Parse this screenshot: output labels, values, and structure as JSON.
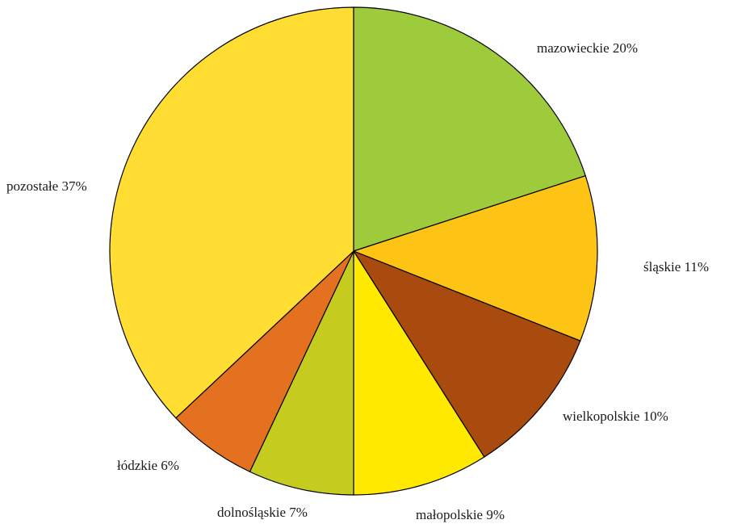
{
  "chart_data": {
    "type": "pie",
    "title": "",
    "start": "12 o'clock",
    "direction": "clockwise",
    "slices": [
      {
        "label": "mazowieckie 20%",
        "category": "mazowieckie",
        "value": 20,
        "color": "#9dcb3c"
      },
      {
        "label": "śląskie 11%",
        "category": "śląskie",
        "value": 11,
        "color": "#fdc315"
      },
      {
        "label": "wielkopolskie 10%",
        "category": "wielkopolskie",
        "value": 10,
        "color": "#a94a0e"
      },
      {
        "label": "małopolskie 9%",
        "category": "małopolskie",
        "value": 9,
        "color": "#ffe900"
      },
      {
        "label": "dolnośląskie 7%",
        "category": "dolnośląskie",
        "value": 7,
        "color": "#c5cb1f"
      },
      {
        "label": "łódzkie 6%",
        "category": "łódzkie",
        "value": 6,
        "color": "#e3711f"
      },
      {
        "label": "pozostałe 37%",
        "category": "pozostałe",
        "value": 37,
        "color": "#ffdd33"
      }
    ]
  }
}
